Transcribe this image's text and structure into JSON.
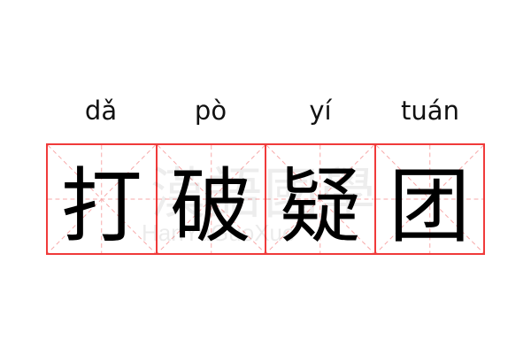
{
  "words": [
    {
      "pinyin": "dǎ",
      "char": "打"
    },
    {
      "pinyin": "pò",
      "char": "破"
    },
    {
      "pinyin": "yí",
      "char": "疑"
    },
    {
      "pinyin": "tuán",
      "char": "团"
    }
  ],
  "watermark": {
    "chinese": "漢語國學",
    "latin": "HanYuGuoXue"
  },
  "colors": {
    "border": "#f03a3a",
    "guide": "#f7a8a8",
    "text": "#000000"
  }
}
